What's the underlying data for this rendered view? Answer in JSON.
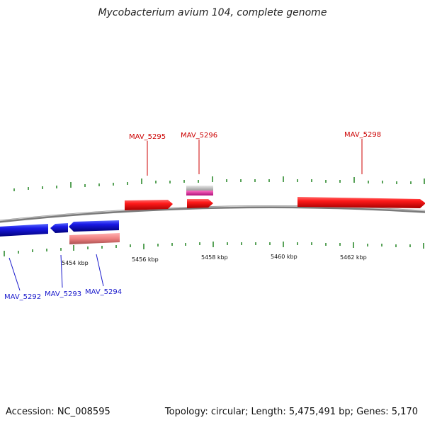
{
  "title": "Mycobacterium avium 104, complete genome",
  "footer": {
    "accession": "Accession: NC_008595",
    "summary": "Topology: circular; Length: 5,475,491 bp; Genes: 5,170"
  },
  "colors": {
    "forward_gene": "#e8191b",
    "reverse_gene": "#1219d6",
    "reverse_pseudo": "#e98080",
    "misc_gray": "#b8b8b8",
    "misc_pink": "#e0309a",
    "backbone": "#8a8a8a",
    "tick": "#2e8b2e"
  },
  "axis": {
    "tick_labels": [
      "5454 kbp",
      "5456 kbp",
      "5458 kbp",
      "5460 kbp",
      "5462 kbp"
    ]
  },
  "genes": {
    "forward": [
      "MAV_5295",
      "MAV_5296",
      "MAV_5298"
    ],
    "reverse": [
      "MAV_5292",
      "MAV_5293",
      "MAV_5294"
    ]
  }
}
